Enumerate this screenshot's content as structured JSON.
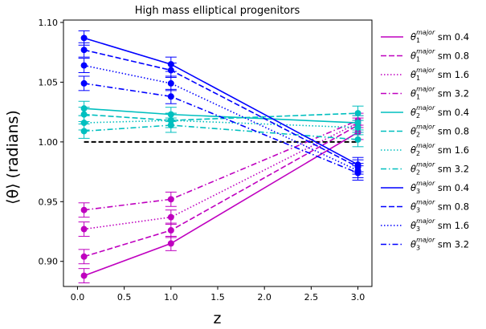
{
  "chart_data": {
    "type": "line",
    "title": "High mass elliptical progenitors",
    "xlabel": "z",
    "ylabel": "⟨θ⟩ (radians)",
    "xlim": [
      -0.15,
      3.15
    ],
    "ylim": [
      0.879,
      1.102
    ],
    "xticks": [
      0.0,
      0.5,
      1.0,
      1.5,
      2.0,
      2.5,
      3.0
    ],
    "xtick_labels": [
      "0.0",
      "0.5",
      "1.0",
      "1.5",
      "2.0",
      "2.5",
      "3.0"
    ],
    "yticks": [
      0.9,
      0.95,
      1.0,
      1.05,
      1.1
    ],
    "ytick_labels": [
      "0.90",
      "0.95",
      "1.00",
      "1.05",
      "1.10"
    ],
    "grid": false,
    "legend_position": "outside-right",
    "reference_line": {
      "y": 1.0,
      "style": "dashed",
      "color": "#000000"
    },
    "x": [
      0.07,
      1.0,
      3.0
    ],
    "series": [
      {
        "name": "θ1major sm 0.4",
        "label_main": "θ",
        "label_sub": "1",
        "label_sup": "major",
        "label_tail": " sm 0.4",
        "color": "#bf00bf",
        "dash": "solid",
        "values": [
          0.888,
          0.915,
          1.008
        ],
        "errors": [
          0.006,
          0.006,
          0.006
        ]
      },
      {
        "name": "θ1major sm 0.8",
        "label_main": "θ",
        "label_sub": "1",
        "label_sup": "major",
        "label_tail": " sm 0.8",
        "color": "#bf00bf",
        "dash": "dashed",
        "values": [
          0.904,
          0.926,
          1.014
        ],
        "errors": [
          0.006,
          0.006,
          0.006
        ]
      },
      {
        "name": "θ1major sm 1.6",
        "label_main": "θ",
        "label_sub": "1",
        "label_sup": "major",
        "label_tail": " sm 1.6",
        "color": "#bf00bf",
        "dash": "dotted",
        "values": [
          0.927,
          0.937,
          1.016
        ],
        "errors": [
          0.006,
          0.006,
          0.006
        ]
      },
      {
        "name": "θ1major sm 3.2",
        "label_main": "θ",
        "label_sub": "1",
        "label_sup": "major",
        "label_tail": " sm 3.2",
        "color": "#bf00bf",
        "dash": "dashdot",
        "values": [
          0.943,
          0.952,
          1.018
        ],
        "errors": [
          0.006,
          0.006,
          0.006
        ]
      },
      {
        "name": "θ2major sm 0.4",
        "label_main": "θ",
        "label_sub": "2",
        "label_sup": "major",
        "label_tail": " sm 0.4",
        "color": "#00bfbf",
        "dash": "solid",
        "values": [
          1.028,
          1.023,
          1.016
        ],
        "errors": [
          0.006,
          0.006,
          0.006
        ]
      },
      {
        "name": "θ2major sm 0.8",
        "label_main": "θ",
        "label_sub": "2",
        "label_sup": "major",
        "label_tail": " sm 0.8",
        "color": "#00bfbf",
        "dash": "dashed",
        "values": [
          1.023,
          1.018,
          1.024
        ],
        "errors": [
          0.006,
          0.006,
          0.006
        ]
      },
      {
        "name": "θ2major sm 1.6",
        "label_main": "θ",
        "label_sub": "2",
        "label_sup": "major",
        "label_tail": " sm 1.6",
        "color": "#00bfbf",
        "dash": "dotted",
        "values": [
          1.016,
          1.018,
          1.012
        ],
        "errors": [
          0.006,
          0.006,
          0.006
        ]
      },
      {
        "name": "θ2major sm 3.2",
        "label_main": "θ",
        "label_sub": "2",
        "label_sup": "major",
        "label_tail": " sm 3.2",
        "color": "#00bfbf",
        "dash": "dashdot",
        "values": [
          1.009,
          1.014,
          1.002
        ],
        "errors": [
          0.006,
          0.006,
          0.006
        ]
      },
      {
        "name": "θ3major sm 0.4",
        "label_main": "θ",
        "label_sub": "3",
        "label_sup": "major",
        "label_tail": " sm 0.4",
        "color": "#0000ff",
        "dash": "solid",
        "values": [
          1.087,
          1.065,
          0.981
        ],
        "errors": [
          0.006,
          0.006,
          0.006
        ]
      },
      {
        "name": "θ3major sm 0.8",
        "label_main": "θ",
        "label_sub": "3",
        "label_sup": "major",
        "label_tail": " sm 0.8",
        "color": "#0000ff",
        "dash": "dashed",
        "values": [
          1.077,
          1.06,
          0.979
        ],
        "errors": [
          0.006,
          0.006,
          0.006
        ]
      },
      {
        "name": "θ3major sm 1.6",
        "label_main": "θ",
        "label_sub": "3",
        "label_sup": "major",
        "label_tail": " sm 1.6",
        "color": "#0000ff",
        "dash": "dotted",
        "values": [
          1.064,
          1.049,
          0.976
        ],
        "errors": [
          0.006,
          0.006,
          0.006
        ]
      },
      {
        "name": "θ3major sm 3.2",
        "label_main": "θ",
        "label_sub": "3",
        "label_sup": "major",
        "label_tail": " sm 3.2",
        "color": "#0000ff",
        "dash": "dashdot",
        "values": [
          1.049,
          1.038,
          0.974
        ],
        "errors": [
          0.006,
          0.006,
          0.006
        ]
      }
    ]
  }
}
